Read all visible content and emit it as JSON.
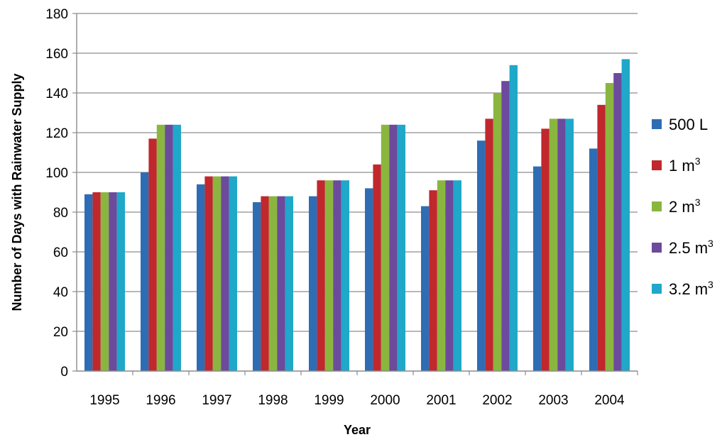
{
  "chart_data": {
    "type": "bar",
    "title": "",
    "xlabel": "Year",
    "ylabel": "Number of Days with Rainwater Supply",
    "ylim": [
      0,
      180
    ],
    "y_ticks": [
      "0",
      "20",
      "40",
      "60",
      "80",
      "100",
      "120",
      "140",
      "160",
      "180"
    ],
    "grid": true,
    "legend_position": "right",
    "categories": [
      "1995",
      "1996",
      "1997",
      "1998",
      "1999",
      "2000",
      "2001",
      "2002",
      "2003",
      "2004"
    ],
    "series": [
      {
        "name": "500 L",
        "name_base": "500 L",
        "name_sup": "",
        "color": "#2e6db4",
        "values": [
          89,
          100,
          94,
          85,
          88,
          92,
          83,
          116,
          103,
          112
        ]
      },
      {
        "name": "1 m3",
        "name_base": "1 m",
        "name_sup": "3",
        "color": "#c0282d",
        "values": [
          90,
          117,
          98,
          88,
          96,
          104,
          91,
          127,
          122,
          134
        ]
      },
      {
        "name": "2 m3",
        "name_base": "2 m",
        "name_sup": "3",
        "color": "#8ab63f",
        "values": [
          90,
          124,
          98,
          88,
          96,
          124,
          96,
          140,
          127,
          145
        ]
      },
      {
        "name": "2.5 m3",
        "name_base": "2.5 m",
        "name_sup": "3",
        "color": "#6c4a9c",
        "values": [
          90,
          124,
          98,
          88,
          96,
          124,
          96,
          146,
          127,
          150
        ]
      },
      {
        "name": "3.2 m3",
        "name_base": "3.2 m",
        "name_sup": "3",
        "color": "#1fa8c9",
        "values": [
          90,
          124,
          98,
          88,
          96,
          124,
          96,
          154,
          127,
          157
        ]
      }
    ]
  }
}
